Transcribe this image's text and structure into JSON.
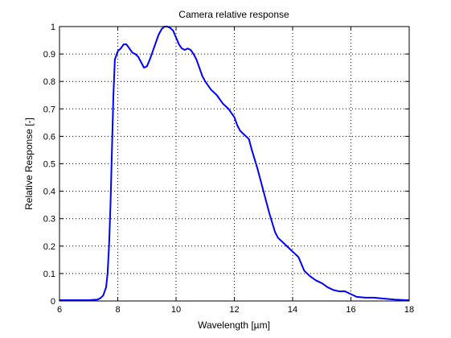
{
  "chart_data": {
    "type": "line",
    "title": "Camera relative response",
    "xlabel": "Wavelength [µm]",
    "ylabel": "Relative Response [-]",
    "xlim": [
      6,
      18
    ],
    "ylim": [
      0,
      1
    ],
    "x_ticks": [
      6,
      8,
      10,
      12,
      14,
      16,
      18
    ],
    "y_ticks": [
      0,
      0.1,
      0.2,
      0.3,
      0.4,
      0.5,
      0.6,
      0.7,
      0.8,
      0.9,
      1
    ],
    "x_tick_labels": [
      "6",
      "8",
      "10",
      "12",
      "14",
      "16",
      "18"
    ],
    "y_tick_labels": [
      "0",
      "0.1",
      "0.2",
      "0.3",
      "0.4",
      "0.5",
      "0.6",
      "0.7",
      "0.8",
      "0.9",
      "1"
    ],
    "grid": true,
    "line_color": "#0000ff",
    "series": [
      {
        "x": [
          6.0,
          7.0,
          7.3,
          7.4,
          7.5,
          7.6,
          7.65,
          7.7,
          7.75,
          7.8,
          7.85,
          7.9,
          8.0,
          8.1,
          8.2,
          8.3,
          8.4,
          8.5,
          8.6,
          8.7,
          8.8,
          8.9,
          9.0,
          9.1,
          9.2,
          9.3,
          9.4,
          9.5,
          9.6,
          9.7,
          9.8,
          9.9,
          10.0,
          10.1,
          10.2,
          10.3,
          10.4,
          10.5,
          10.6,
          10.7,
          10.8,
          10.9,
          11.0,
          11.2,
          11.4,
          11.6,
          11.8,
          12.0,
          12.1,
          12.2,
          12.3,
          12.5,
          12.6,
          12.8,
          13.0,
          13.2,
          13.4,
          13.5,
          13.7,
          14.0,
          14.2,
          14.4,
          14.6,
          14.8,
          15.0,
          15.2,
          15.4,
          15.6,
          15.8,
          16.0,
          16.2,
          16.5,
          16.8,
          17.0,
          17.5,
          17.9,
          18.0
        ],
        "y": [
          0.003,
          0.003,
          0.005,
          0.01,
          0.02,
          0.05,
          0.1,
          0.2,
          0.35,
          0.55,
          0.75,
          0.88,
          0.91,
          0.92,
          0.935,
          0.935,
          0.92,
          0.905,
          0.9,
          0.89,
          0.87,
          0.85,
          0.855,
          0.88,
          0.91,
          0.94,
          0.97,
          0.99,
          1.0,
          1.0,
          0.995,
          0.985,
          0.96,
          0.935,
          0.92,
          0.915,
          0.92,
          0.915,
          0.9,
          0.88,
          0.85,
          0.82,
          0.8,
          0.77,
          0.75,
          0.72,
          0.7,
          0.67,
          0.64,
          0.62,
          0.61,
          0.59,
          0.55,
          0.48,
          0.4,
          0.32,
          0.25,
          0.23,
          0.21,
          0.18,
          0.16,
          0.11,
          0.09,
          0.075,
          0.065,
          0.05,
          0.04,
          0.035,
          0.035,
          0.025,
          0.015,
          0.012,
          0.012,
          0.01,
          0.005,
          0.003,
          0.003
        ]
      }
    ]
  }
}
